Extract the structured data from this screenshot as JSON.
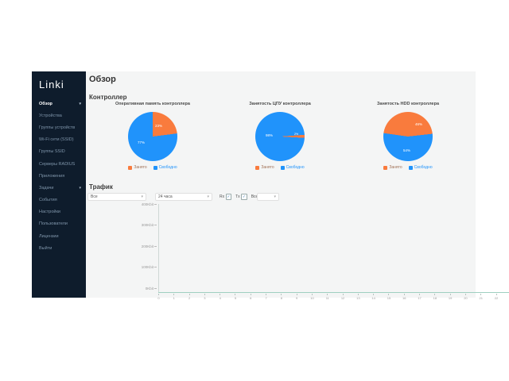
{
  "app": {
    "brand": "Linki"
  },
  "icons": {
    "chevron_down": "▾",
    "check": "✓"
  },
  "colors": {
    "used_orange": "#f97b3d",
    "free_blue": "#2093fb",
    "sidebar_bg": "#0e1c2c",
    "axis_teal": "#9fcfc0"
  },
  "sidebar": {
    "items": [
      {
        "label": "Обзор",
        "active": true,
        "chevron": true
      },
      {
        "label": "Устройства"
      },
      {
        "label": "Группы устройств"
      },
      {
        "label": "Wi-Fi сети (SSID)"
      },
      {
        "label": "Группы SSID"
      },
      {
        "label": "Серверы RADIUS"
      },
      {
        "label": "Приложения"
      },
      {
        "label": "Задачи",
        "chevron": true
      },
      {
        "label": "События"
      },
      {
        "label": "Настройки"
      },
      {
        "label": "Пользователи"
      },
      {
        "label": "Лицензии"
      },
      {
        "label": "Выйти"
      }
    ]
  },
  "page": {
    "title": "Обзор"
  },
  "controller": {
    "heading": "Контроллер",
    "legend": {
      "used": "Занято",
      "free": "Свободно"
    },
    "pies": [
      {
        "title": "Оперативная память контроллера",
        "used_pct": 23,
        "free_pct": 77,
        "used_label": "23%",
        "free_label": "77%"
      },
      {
        "title": "Занятость ЦПУ контроллера",
        "used_pct": 2,
        "free_pct": 98,
        "used_label": "2%",
        "free_label": "98%"
      },
      {
        "title": "Занятость HDD контроллера",
        "used_pct": 46,
        "free_pct": 54,
        "used_label": "46%",
        "free_label": "54%"
      }
    ]
  },
  "traffic": {
    "heading": "Трафик",
    "filters": {
      "scope_value": "Все",
      "period_value": "24 часа",
      "checkboxes": [
        {
          "label": "Rx",
          "checked": true
        },
        {
          "label": "Tx",
          "checked": true
        },
        {
          "label": "Всего",
          "checked": true
        }
      ],
      "extra_value": ""
    }
  },
  "chart_data": [
    {
      "type": "pie",
      "title": "Оперативная память контроллера",
      "labels": [
        "Занято",
        "Свободно"
      ],
      "values": [
        23,
        77
      ],
      "unit": "%",
      "legend_position": "bottom"
    },
    {
      "type": "pie",
      "title": "Занятость ЦПУ контроллера",
      "labels": [
        "Занято",
        "Свободно"
      ],
      "values": [
        2,
        98
      ],
      "unit": "%",
      "legend_position": "bottom"
    },
    {
      "type": "pie",
      "title": "Занятость HDD контроллера",
      "labels": [
        "Занято",
        "Свободно"
      ],
      "values": [
        46,
        54
      ],
      "unit": "%",
      "legend_position": "bottom"
    },
    {
      "type": "line",
      "title": "Трафик",
      "xlabel": "",
      "ylabel": "",
      "x_ticks": [
        "0",
        "1",
        "2",
        "3",
        "4",
        "5",
        "6",
        "7",
        "8",
        "9",
        "10",
        "11",
        "12",
        "13",
        "14",
        "15",
        "16",
        "17",
        "18",
        "19",
        "20",
        "21",
        "22",
        "23"
      ],
      "y_ticks": [
        "400Kbit",
        "300Kbit",
        "200Kbit",
        "100Kbit",
        "0Kbit"
      ],
      "ylim": [
        0,
        400
      ],
      "series": [],
      "grid": false,
      "note_series_plotted": 0
    }
  ]
}
